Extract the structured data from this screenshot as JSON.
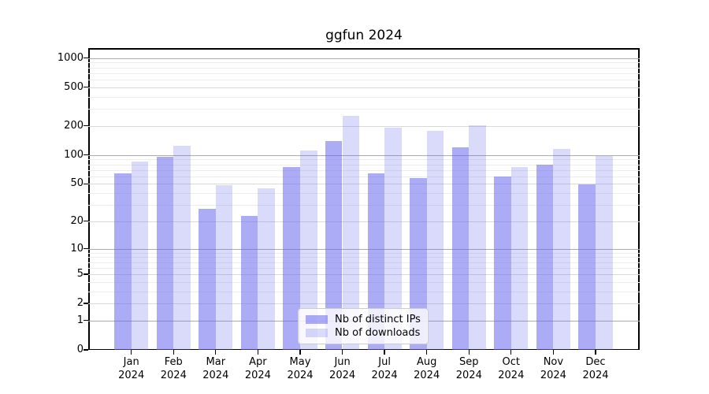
{
  "title": "ggfun 2024",
  "chart_data": {
    "type": "bar",
    "title": "ggfun 2024",
    "x_labels": [
      {
        "month": "Jan",
        "year": "2024"
      },
      {
        "month": "Feb",
        "year": "2024"
      },
      {
        "month": "Mar",
        "year": "2024"
      },
      {
        "month": "Apr",
        "year": "2024"
      },
      {
        "month": "May",
        "year": "2024"
      },
      {
        "month": "Jun",
        "year": "2024"
      },
      {
        "month": "Jul",
        "year": "2024"
      },
      {
        "month": "Aug",
        "year": "2024"
      },
      {
        "month": "Sep",
        "year": "2024"
      },
      {
        "month": "Oct",
        "year": "2024"
      },
      {
        "month": "Nov",
        "year": "2024"
      },
      {
        "month": "Dec",
        "year": "2024"
      }
    ],
    "series": [
      {
        "name": "Nb of distinct IPs",
        "color": "rgba(102,102,238,0.55)",
        "values": [
          64,
          96,
          27,
          23,
          75,
          139,
          64,
          57,
          119,
          60,
          79,
          49
        ]
      },
      {
        "name": "Nb of downloads",
        "color": "rgba(102,102,238,0.24)",
        "values": [
          85,
          125,
          48,
          45,
          112,
          252,
          192,
          178,
          202,
          75,
          115,
          98
        ]
      }
    ],
    "yscale": "log1p",
    "yticks": [
      0,
      1,
      2,
      5,
      10,
      20,
      50,
      100,
      200,
      500,
      1000
    ],
    "yticks_minor": [
      3,
      4,
      6,
      7,
      8,
      9,
      30,
      40,
      60,
      70,
      80,
      90,
      300,
      400,
      600,
      700,
      800,
      900
    ],
    "ylim": [
      0,
      1270
    ],
    "grid": true,
    "legend_position": "lower center",
    "xlabel": "",
    "ylabel": ""
  },
  "colors": {
    "bar_dark": "rgba(102,102,238,0.55)",
    "bar_light": "rgba(102,102,238,0.24)",
    "grid_major": "#ababab",
    "grid_mid": "#d9d9d9",
    "grid_minor": "#ededed",
    "spine": "#000000",
    "background": "#ffffff"
  }
}
